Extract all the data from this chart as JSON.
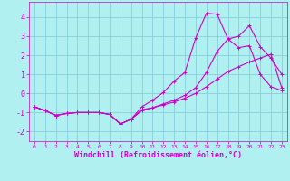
{
  "xlabel": "Windchill (Refroidissement éolien,°C)",
  "background_color": "#b0f0f0",
  "grid_color": "#80c8d8",
  "line_color": "#cc00cc",
  "xlim": [
    -0.5,
    23.5
  ],
  "ylim": [
    -2.5,
    4.8
  ],
  "yticks": [
    -2,
    -1,
    0,
    1,
    2,
    3,
    4
  ],
  "xticks": [
    0,
    1,
    2,
    3,
    4,
    5,
    6,
    7,
    8,
    9,
    10,
    11,
    12,
    13,
    14,
    15,
    16,
    17,
    18,
    19,
    20,
    21,
    22,
    23
  ],
  "line1_x": [
    0,
    1,
    2,
    3,
    4,
    5,
    6,
    7,
    8,
    9,
    10,
    11,
    12,
    13,
    14,
    15,
    16,
    17,
    18,
    19,
    20,
    21,
    22,
    23
  ],
  "line1_y": [
    -0.7,
    -0.9,
    -1.15,
    -1.05,
    -1.0,
    -1.0,
    -1.0,
    -1.1,
    -1.6,
    -1.35,
    -0.7,
    -0.35,
    0.05,
    0.65,
    1.1,
    2.9,
    4.2,
    4.15,
    2.85,
    2.4,
    2.5,
    1.0,
    0.35,
    0.15
  ],
  "line2_x": [
    0,
    1,
    2,
    3,
    4,
    5,
    6,
    7,
    8,
    9,
    10,
    11,
    12,
    13,
    14,
    15,
    16,
    17,
    18,
    19,
    20,
    21,
    22,
    23
  ],
  "line2_y": [
    -0.7,
    -0.9,
    -1.15,
    -1.05,
    -1.0,
    -1.0,
    -1.0,
    -1.1,
    -1.6,
    -1.35,
    -0.9,
    -0.75,
    -0.55,
    -0.35,
    -0.1,
    0.3,
    1.1,
    2.2,
    2.85,
    3.0,
    3.55,
    2.45,
    1.85,
    1.0
  ],
  "line3_x": [
    0,
    1,
    2,
    3,
    4,
    5,
    6,
    7,
    8,
    9,
    10,
    11,
    12,
    13,
    14,
    15,
    16,
    17,
    18,
    19,
    20,
    21,
    22,
    23
  ],
  "line3_y": [
    -0.7,
    -0.9,
    -1.15,
    -1.05,
    -1.0,
    -1.0,
    -1.0,
    -1.1,
    -1.6,
    -1.35,
    -0.85,
    -0.75,
    -0.6,
    -0.45,
    -0.25,
    0.0,
    0.35,
    0.75,
    1.15,
    1.4,
    1.65,
    1.85,
    2.05,
    0.3
  ],
  "xlabel_fontsize": 6,
  "ytick_fontsize": 6,
  "xtick_fontsize": 4.5,
  "linewidth": 0.8,
  "markersize": 2.5
}
